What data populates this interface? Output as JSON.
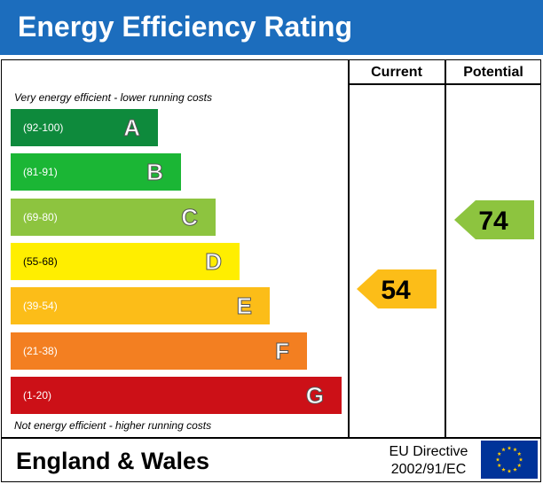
{
  "header": {
    "title": "Energy Efficiency Rating"
  },
  "columns": {
    "current": "Current",
    "potential": "Potential"
  },
  "captions": {
    "top": "Very energy efficient - lower running costs",
    "bottom": "Not energy efficient - higher running costs"
  },
  "chart_data": {
    "type": "bar",
    "title": "Energy Efficiency Rating",
    "categories": [
      "A",
      "B",
      "C",
      "D",
      "E",
      "F",
      "G"
    ],
    "bands": [
      {
        "letter": "A",
        "range": "(92-100)",
        "color": "#0e8a3c"
      },
      {
        "letter": "B",
        "range": "(81-91)",
        "color": "#1bb635"
      },
      {
        "letter": "C",
        "range": "(69-80)",
        "color": "#8dc43f"
      },
      {
        "letter": "D",
        "range": "(55-68)",
        "color": "#ffee00"
      },
      {
        "letter": "E",
        "range": "(39-54)",
        "color": "#fcbd18"
      },
      {
        "letter": "F",
        "range": "(21-38)",
        "color": "#f37f21"
      },
      {
        "letter": "G",
        "range": "(1-20)",
        "color": "#cc1017"
      }
    ],
    "current": {
      "value": 54,
      "band": "E",
      "color": "#fcbd18"
    },
    "potential": {
      "value": 74,
      "band": "C",
      "color": "#8dc43f"
    }
  },
  "footer": {
    "region": "England & Wales",
    "directive_line1": "EU Directive",
    "directive_line2": "2002/91/EC",
    "flag_icon": "eu-flag-icon",
    "flag_color": "#003399",
    "star_color": "#ffcc00"
  }
}
